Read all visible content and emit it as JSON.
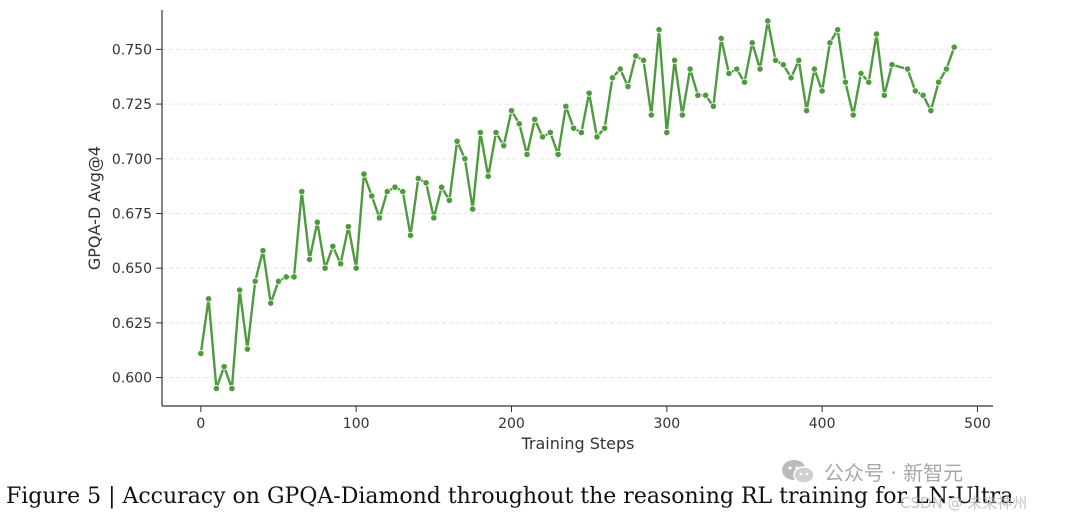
{
  "chart_data": {
    "type": "line",
    "title": "",
    "xlabel": "Training Steps",
    "ylabel": "GPQA-D Avg@4",
    "xlim": [
      -25,
      510
    ],
    "ylim": [
      0.587,
      0.768
    ],
    "xticks": [
      0,
      100,
      200,
      300,
      400,
      500
    ],
    "yticks": [
      0.6,
      0.625,
      0.65,
      0.675,
      0.7,
      0.725,
      0.75
    ],
    "xtick_labels": [
      "0",
      "100",
      "200",
      "300",
      "400",
      "500"
    ],
    "ytick_labels": [
      "0.600",
      "0.625",
      "0.650",
      "0.675",
      "0.700",
      "0.725",
      "0.750"
    ],
    "grid": "horizontal-dashed",
    "color": "#4e9a3e",
    "series": [
      {
        "name": "",
        "x": [
          0,
          5,
          10,
          15,
          20,
          25,
          30,
          35,
          40,
          45,
          50,
          55,
          60,
          65,
          70,
          75,
          80,
          85,
          90,
          95,
          100,
          105,
          110,
          115,
          120,
          125,
          130,
          135,
          140,
          145,
          150,
          155,
          160,
          165,
          170,
          175,
          180,
          185,
          190,
          195,
          200,
          205,
          210,
          215,
          220,
          225,
          230,
          235,
          240,
          245,
          250,
          255,
          260,
          265,
          270,
          275,
          280,
          285,
          290,
          295,
          300,
          305,
          310,
          315,
          320,
          325,
          330,
          335,
          340,
          345,
          350,
          355,
          360,
          365,
          370,
          375,
          380,
          385,
          390,
          395,
          400,
          405,
          410,
          415,
          420,
          425,
          430,
          435,
          440,
          445,
          455,
          460,
          465,
          470,
          475,
          480,
          485
        ],
        "y": [
          0.611,
          0.636,
          0.595,
          0.605,
          0.595,
          0.64,
          0.613,
          0.644,
          0.658,
          0.634,
          0.644,
          0.646,
          0.646,
          0.685,
          0.654,
          0.671,
          0.65,
          0.66,
          0.652,
          0.669,
          0.65,
          0.693,
          0.683,
          0.673,
          0.685,
          0.687,
          0.685,
          0.665,
          0.691,
          0.689,
          0.673,
          0.687,
          0.681,
          0.708,
          0.7,
          0.677,
          0.712,
          0.692,
          0.712,
          0.706,
          0.722,
          0.716,
          0.702,
          0.718,
          0.71,
          0.712,
          0.702,
          0.724,
          0.714,
          0.712,
          0.73,
          0.71,
          0.714,
          0.737,
          0.741,
          0.733,
          0.747,
          0.745,
          0.72,
          0.759,
          0.712,
          0.745,
          0.72,
          0.741,
          0.729,
          0.729,
          0.724,
          0.755,
          0.739,
          0.741,
          0.735,
          0.753,
          0.741,
          0.763,
          0.745,
          0.743,
          0.737,
          0.745,
          0.722,
          0.741,
          0.731,
          0.753,
          0.759,
          0.735,
          0.72,
          0.739,
          0.735,
          0.757,
          0.729,
          0.743,
          0.741,
          0.731,
          0.729,
          0.722,
          0.735,
          0.741,
          0.751
        ]
      }
    ]
  },
  "caption": {
    "text": "Figure 5 | Accuracy on GPQA-Diamond throughout the reasoning RL training for LN-Ultra"
  },
  "watermark": {
    "icon": "wechat-icon",
    "text": "公众号 · 新智元",
    "subtext": "CSDN @ 未来神州"
  }
}
